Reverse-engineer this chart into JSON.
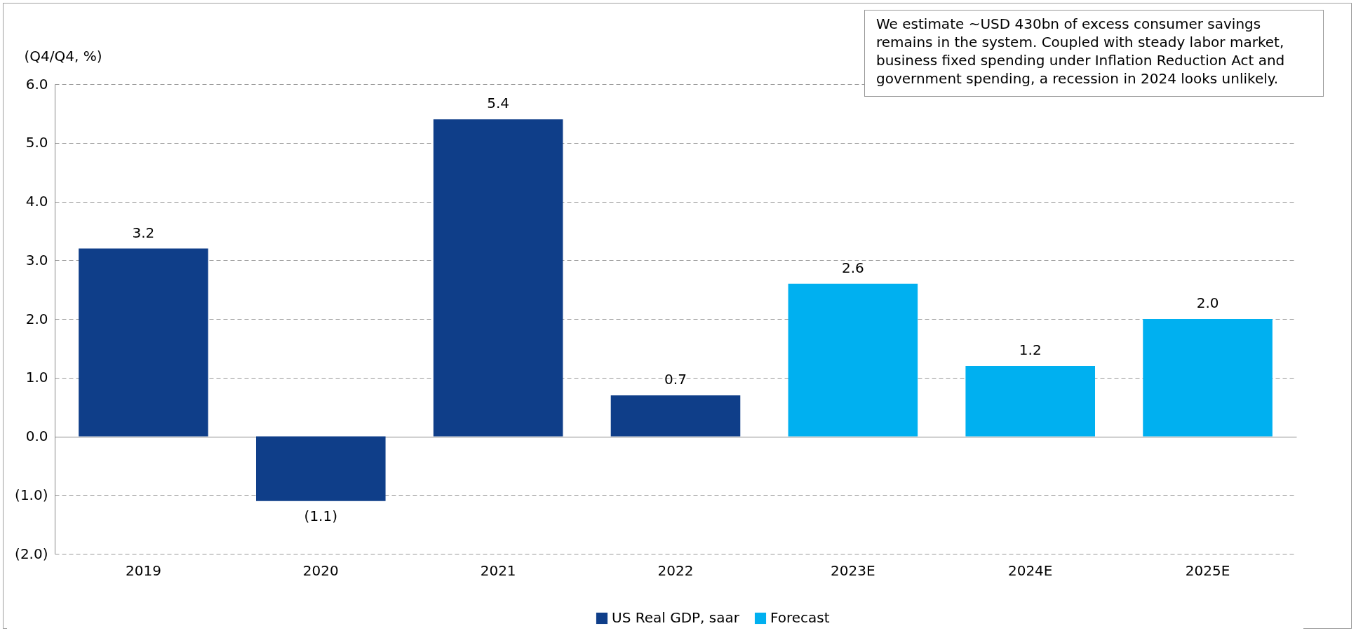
{
  "chart_data": {
    "type": "bar",
    "ylabel": "(Q4/Q4, %)",
    "categories": [
      "2019",
      "2020",
      "2021",
      "2022",
      "2023E",
      "2024E",
      "2025E"
    ],
    "series": [
      {
        "name": "US Real GDP, saar",
        "color": "#0f3e89",
        "values": [
          3.2,
          -1.1,
          5.4,
          0.7,
          null,
          null,
          null
        ],
        "value_labels": [
          "3.2",
          "(1.1)",
          "5.4",
          "0.7",
          null,
          null,
          null
        ]
      },
      {
        "name": "Forecast",
        "color": "#00b0f0",
        "values": [
          null,
          null,
          null,
          null,
          2.6,
          1.2,
          2.0
        ],
        "value_labels": [
          null,
          null,
          null,
          null,
          "2.6",
          "1.2",
          "2.0"
        ]
      }
    ],
    "ylim": [
      -2,
      6
    ],
    "yticks": [
      {
        "value": -2,
        "label": "(2.0)"
      },
      {
        "value": -1,
        "label": "(1.0)"
      },
      {
        "value": 0,
        "label": "0.0"
      },
      {
        "value": 1,
        "label": "1.0"
      },
      {
        "value": 2,
        "label": "2.0"
      },
      {
        "value": 3,
        "label": "3.0"
      },
      {
        "value": 4,
        "label": "4.0"
      },
      {
        "value": 5,
        "label": "5.0"
      },
      {
        "value": 6,
        "label": "6.0"
      }
    ],
    "grid": "y",
    "legend": "bottom",
    "annotations": [
      "We estimate ~USD 430bn of excess consumer savings remains in the system. Coupled with steady labor market, business fixed spending under Inflation Reduction Act and government spending, a recession in 2024 looks unlikely."
    ]
  }
}
